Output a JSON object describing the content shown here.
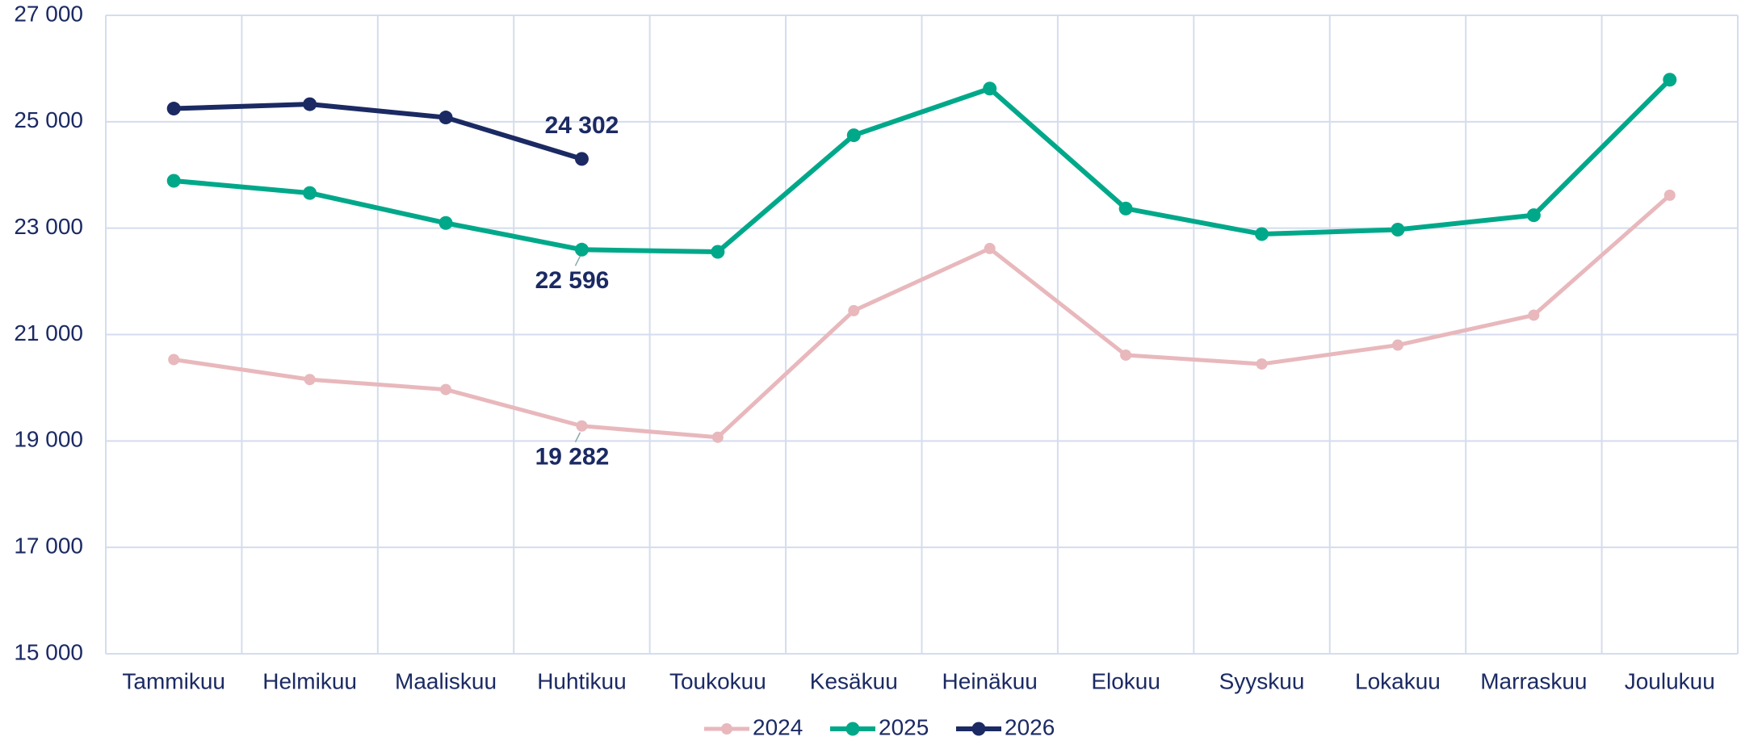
{
  "chart_data": {
    "type": "line",
    "categories": [
      "Tammikuu",
      "Helmikuu",
      "Maaliskuu",
      "Huhtikuu",
      "Toukokuu",
      "Kesäkuu",
      "Heinäkuu",
      "Elokuu",
      "Syyskuu",
      "Lokakuu",
      "Marraskuu",
      "Joulukuu"
    ],
    "series": [
      {
        "name": "2024",
        "color": "#e8b8bc",
        "values": [
          20530,
          20155,
          19967,
          19282,
          19070,
          21449,
          22617,
          20614,
          20447,
          20802,
          21365,
          23619
        ],
        "value_labels": [
          null,
          null,
          null,
          "19 282",
          null,
          null,
          null,
          null,
          null,
          null,
          null,
          null
        ]
      },
      {
        "name": "2025",
        "color": "#00a88a",
        "values": [
          23890,
          23661,
          23097,
          22596,
          22555,
          24746,
          25623,
          23369,
          22889,
          22972,
          23243,
          25790
        ],
        "value_labels": [
          null,
          null,
          null,
          "22 596",
          null,
          null,
          null,
          null,
          null,
          null,
          null,
          null
        ]
      },
      {
        "name": "2026",
        "color": "#1b2a63",
        "values": [
          25247,
          25330,
          25080,
          24302,
          null,
          null,
          null,
          null,
          null,
          null,
          null,
          null
        ],
        "value_labels": [
          null,
          null,
          null,
          "24 302",
          null,
          null,
          null,
          null,
          null,
          null,
          null,
          null
        ]
      }
    ],
    "ylim": [
      15000,
      27000
    ],
    "yticks": [
      {
        "value": 15000,
        "label": "15 000"
      },
      {
        "value": 17000,
        "label": "17 000"
      },
      {
        "value": 19000,
        "label": "19 000"
      },
      {
        "value": 21000,
        "label": "21 000"
      },
      {
        "value": 23000,
        "label": "23 000"
      },
      {
        "value": 25000,
        "label": "25 000"
      },
      {
        "value": 27000,
        "label": "27 000"
      }
    ],
    "grid": true,
    "legend": "bottom"
  }
}
